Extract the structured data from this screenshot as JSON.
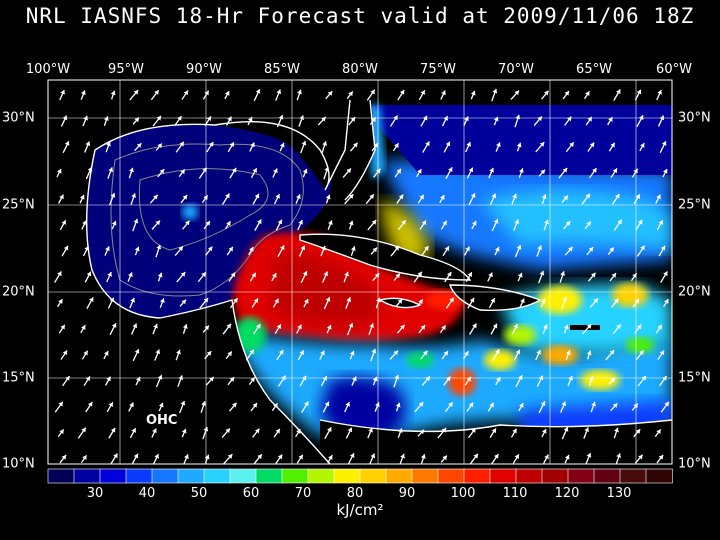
{
  "title": "NRL IASNFS  18-Hr Forecast valid at 2009/11/06 18Z",
  "map_label": "OHC",
  "units": "kJ/cm²",
  "longitude_labels": [
    "100°W",
    "95°W",
    "90°W",
    "85°W",
    "80°W",
    "75°W",
    "70°W",
    "65°W",
    "60°W"
  ],
  "latitude_labels": [
    "30°N",
    "25°N",
    "20°N",
    "15°N",
    "10°N"
  ],
  "colorbar": {
    "tick_labels": [
      "30",
      "40",
      "50",
      "60",
      "70",
      "80",
      "90",
      "100",
      "110",
      "120",
      "130"
    ],
    "colors": [
      "#00005a",
      "#0000a0",
      "#0000dc",
      "#0a3cff",
      "#1478ff",
      "#1eaaff",
      "#28d2ff",
      "#5af0f0",
      "#00dc64",
      "#50f000",
      "#b4f500",
      "#fff000",
      "#ffd200",
      "#ffaa00",
      "#ff7800",
      "#ff4600",
      "#ff1e00",
      "#e10000",
      "#be0000",
      "#a00000",
      "#820014",
      "#640014",
      "#460a0a",
      "#300505"
    ]
  },
  "colors": {
    "background": "#000000",
    "land": "#000000",
    "coast": "#ffffff",
    "grid": "#ffffff"
  },
  "icons": {
    "wind_vector": "wind-arrow-icon"
  }
}
